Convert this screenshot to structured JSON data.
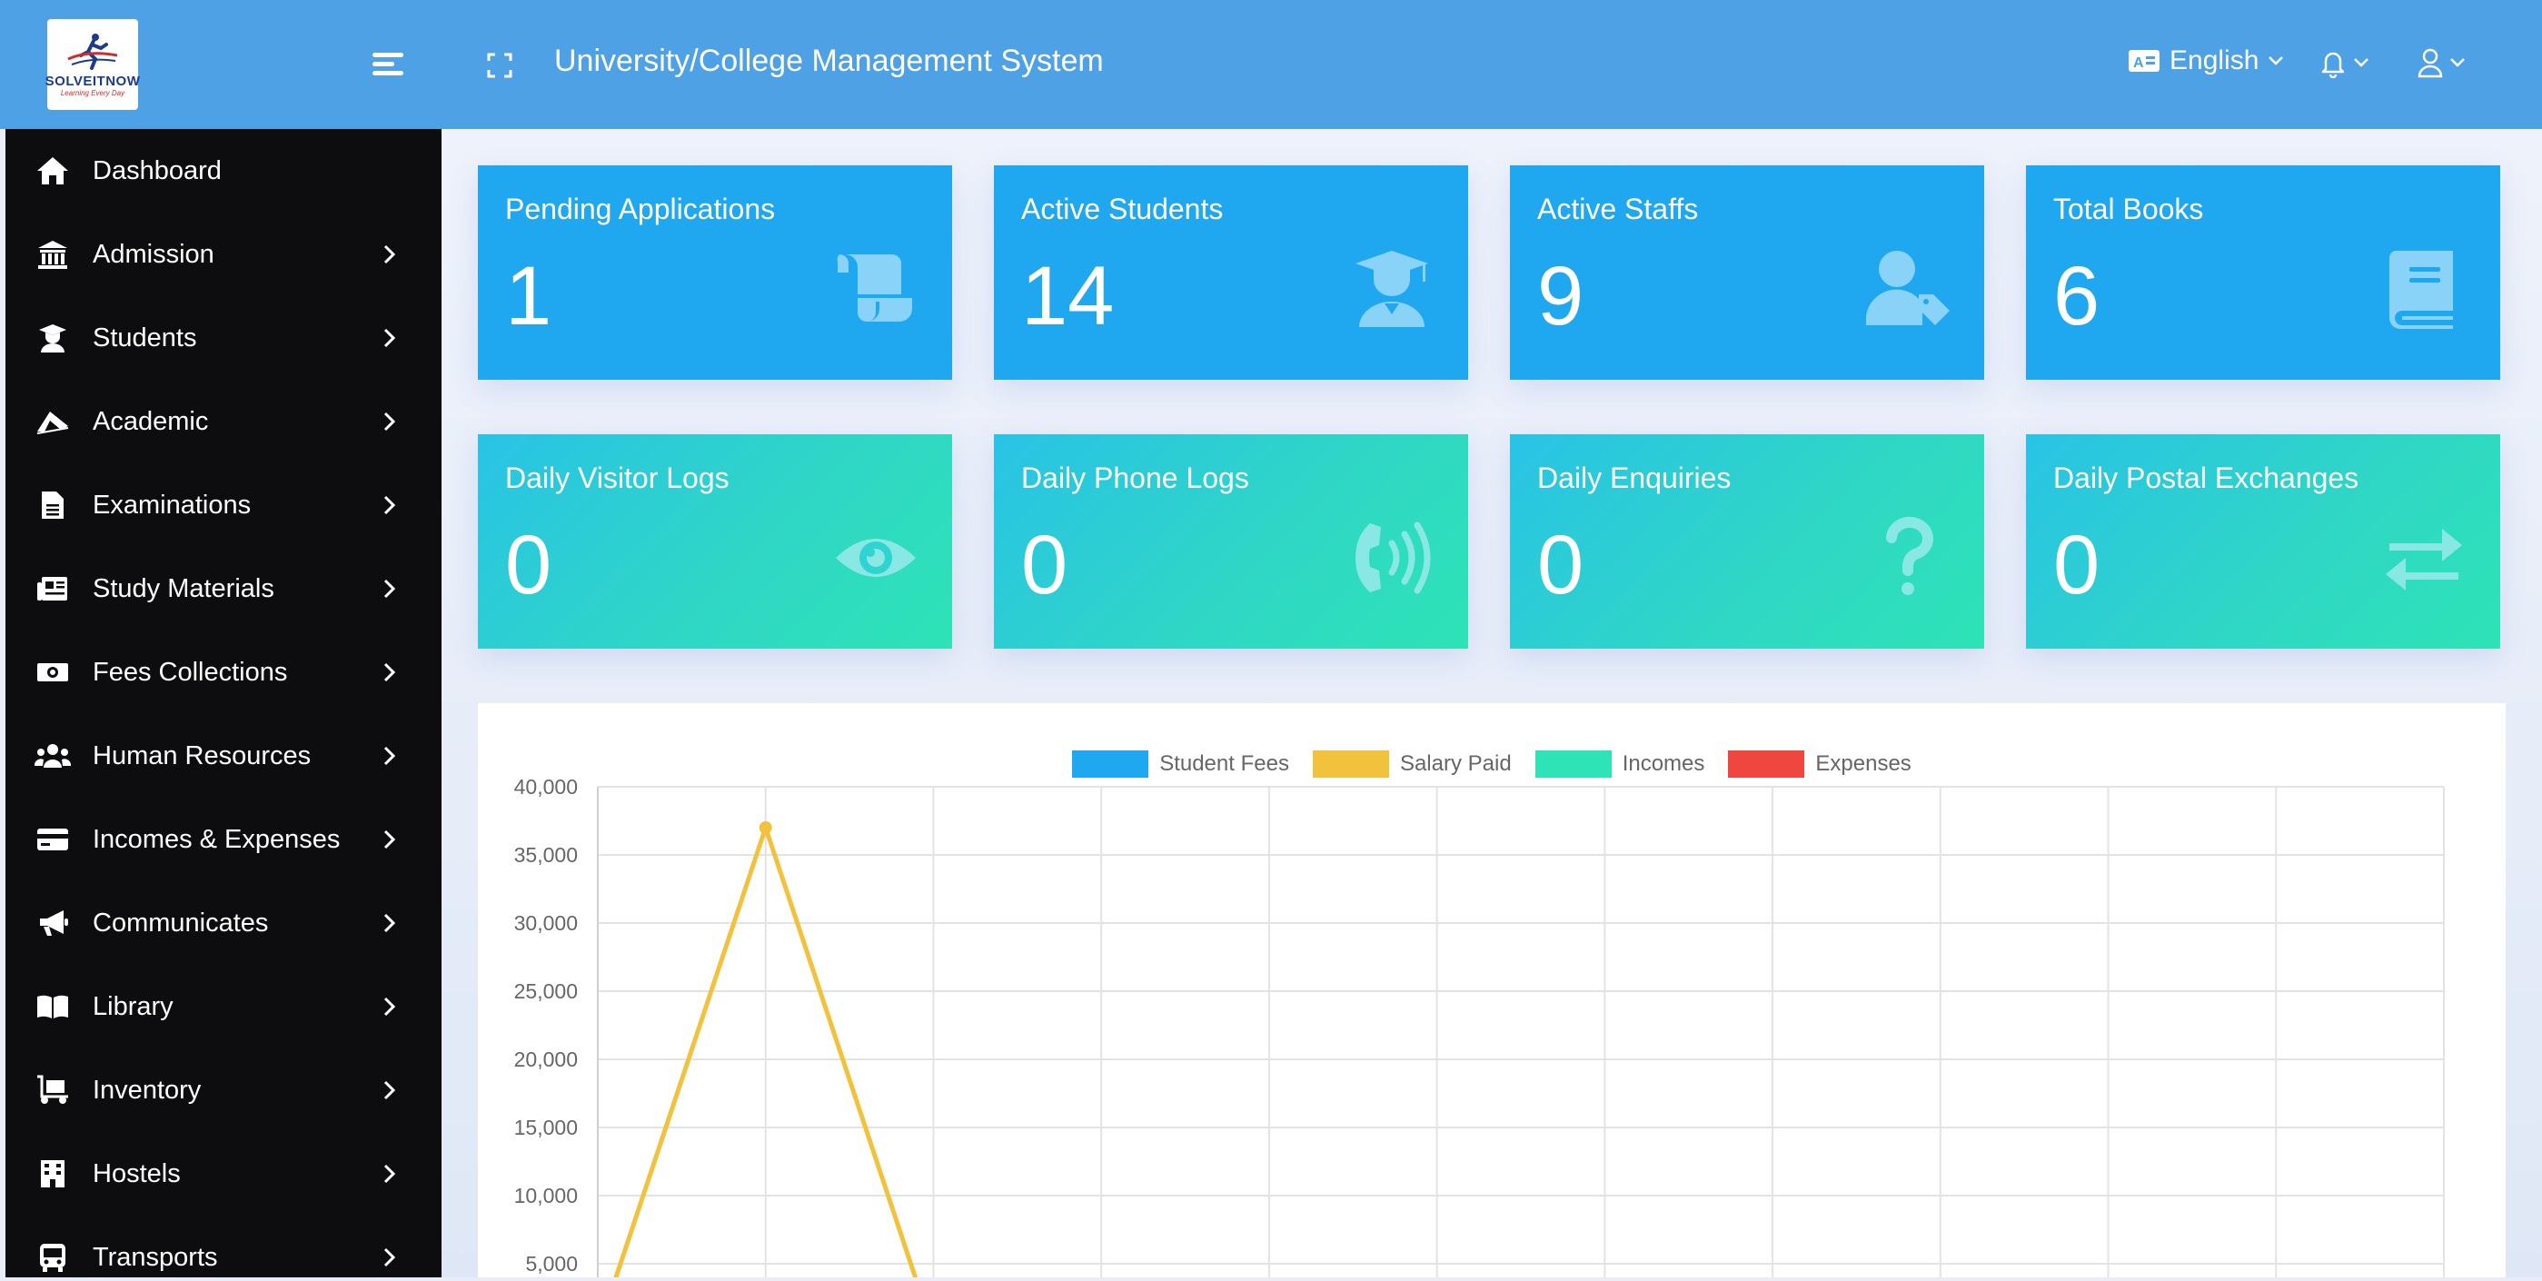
{
  "header": {
    "logo_text": "SOLVEITNOW",
    "logo_sub": "Learning Every Day",
    "title": "University/College Management System",
    "language": "English"
  },
  "sidebar": {
    "items": [
      {
        "label": "Dashboard",
        "icon": "home-icon",
        "has_children": false
      },
      {
        "label": "Admission",
        "icon": "university-icon",
        "has_children": true
      },
      {
        "label": "Students",
        "icon": "graduate-icon",
        "has_children": true
      },
      {
        "label": "Academic",
        "icon": "book-open-icon",
        "has_children": true
      },
      {
        "label": "Examinations",
        "icon": "file-icon",
        "has_children": true
      },
      {
        "label": "Study Materials",
        "icon": "newspaper-icon",
        "has_children": true
      },
      {
        "label": "Fees Collections",
        "icon": "money-icon",
        "has_children": true
      },
      {
        "label": "Human Resources",
        "icon": "users-icon",
        "has_children": true
      },
      {
        "label": "Incomes & Expenses",
        "icon": "credit-card-icon",
        "has_children": true
      },
      {
        "label": "Communicates",
        "icon": "megaphone-icon",
        "has_children": true
      },
      {
        "label": "Library",
        "icon": "library-icon",
        "has_children": true
      },
      {
        "label": "Inventory",
        "icon": "dolly-icon",
        "has_children": true
      },
      {
        "label": "Hostels",
        "icon": "building-icon",
        "has_children": true
      },
      {
        "label": "Transports",
        "icon": "bus-icon",
        "has_children": true
      }
    ]
  },
  "cards": [
    {
      "label": "Pending Applications",
      "value": "1",
      "icon": "scroll-icon",
      "style": "blue"
    },
    {
      "label": "Active Students",
      "value": "14",
      "icon": "graduate-icon",
      "style": "blue"
    },
    {
      "label": "Active Staffs",
      "value": "9",
      "icon": "user-tag-icon",
      "style": "blue"
    },
    {
      "label": "Total Books",
      "value": "6",
      "icon": "book-icon",
      "style": "blue"
    },
    {
      "label": "Daily Visitor Logs",
      "value": "0",
      "icon": "eye-icon",
      "style": "teal"
    },
    {
      "label": "Daily Phone Logs",
      "value": "0",
      "icon": "phone-volume-icon",
      "style": "teal"
    },
    {
      "label": "Daily Enquiries",
      "value": "0",
      "icon": "question-icon",
      "style": "teal"
    },
    {
      "label": "Daily Postal Exchanges",
      "value": "0",
      "icon": "exchange-icon",
      "style": "teal"
    }
  ],
  "colors": {
    "header": "#4ea1e4",
    "sidebar": "#0d0d0f",
    "card_blue": "#1fa8f0",
    "student_fees": "#1fa8f0",
    "salary_paid": "#f2c23c",
    "incomes": "#2ee3b6",
    "expenses": "#f04640"
  },
  "chart_data": {
    "type": "line",
    "ylim": [
      0,
      40000
    ],
    "y_ticks": [
      "40,000",
      "35,000",
      "30,000",
      "25,000",
      "20,000",
      "15,000",
      "10,000",
      "5,000"
    ],
    "x_count": 12,
    "series": [
      {
        "name": "Student Fees",
        "color": "#1fa8f0",
        "values": [
          0,
          0,
          0,
          0,
          0,
          0,
          0,
          0,
          0,
          0,
          0,
          0
        ]
      },
      {
        "name": "Salary Paid",
        "color": "#f2c23c",
        "values": [
          0,
          37000,
          0,
          0,
          0,
          0,
          0,
          0,
          0,
          0,
          0,
          0
        ]
      },
      {
        "name": "Incomes",
        "color": "#2ee3b6",
        "values": [
          0,
          0,
          0,
          0,
          0,
          0,
          0,
          0,
          0,
          0,
          0,
          0
        ]
      },
      {
        "name": "Expenses",
        "color": "#f04640",
        "values": [
          0,
          0,
          0,
          0,
          0,
          0,
          0,
          0,
          0,
          0,
          0,
          0
        ]
      }
    ]
  }
}
